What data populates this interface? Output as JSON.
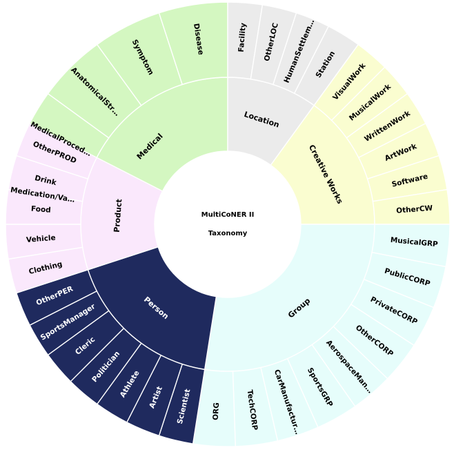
{
  "center": {
    "line1": "MultiCoNER II",
    "line2": "Taxonomy"
  },
  "colors": {
    "Medical": "#d4f7c1",
    "Location": "#ebebeb",
    "Creative Works": "#fafdd0",
    "Group": "#e6fdfb",
    "Person": "#1f2a5e",
    "Product": "#fae8fc"
  },
  "groups": [
    {
      "name": "Medical",
      "start": -90,
      "end": 0,
      "text_color": "#000000",
      "children": [
        "Medication/Va…",
        "MedicalProced…",
        "AnatomicalStr…",
        "Symptom",
        "Disease"
      ]
    },
    {
      "name": "Location",
      "start": 0,
      "end": 36,
      "text_color": "#000000",
      "children": [
        "Facility",
        "OtherLOC",
        "HumanSettlem…",
        "Station"
      ]
    },
    {
      "name": "Creative Works",
      "start": 36,
      "end": 90,
      "text_color": "#000000",
      "children": [
        "VisualWork",
        "MusicalWork",
        "WrittenWork",
        "ArtWork",
        "Software",
        "OtherCW"
      ]
    },
    {
      "name": "Group",
      "start": 90,
      "end": 189,
      "text_color": "#000000",
      "children": [
        "MusicalGRP",
        "PublicCORP",
        "PrivateCORP",
        "OtherCORP",
        "AerospaceMan…",
        "SportsGRP",
        "CarManufactur…",
        "TechCORP",
        "ORG"
      ]
    },
    {
      "name": "Person",
      "start": 189,
      "end": 252,
      "text_color": "#ffffff",
      "children": [
        "Scientist",
        "Artist",
        "Athlete",
        "Politician",
        "Cleric",
        "SportsManager",
        "OtherPER"
      ]
    },
    {
      "name": "Product",
      "start": 252,
      "end": 297,
      "text_color": "#000000",
      "children": [
        "Clothing",
        "Vehicle",
        "Food",
        "Drink",
        "OtherPROD"
      ]
    }
  ]
}
